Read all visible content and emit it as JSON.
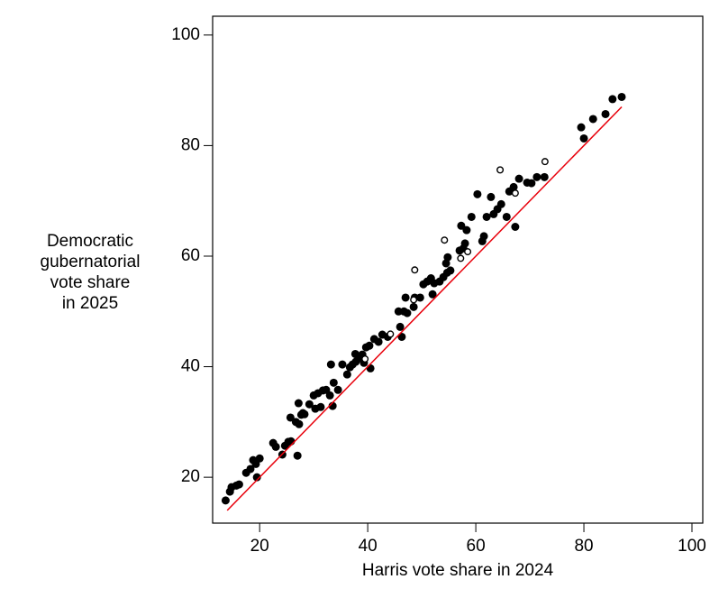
{
  "chart_data": {
    "type": "scatter",
    "xlabel": "Harris vote share in 2024",
    "ylabel": [
      "Democratic",
      "gubernatorial",
      "vote share",
      "in 2025"
    ],
    "xlim": [
      11.3,
      102
    ],
    "ylim": [
      11.7,
      103.4
    ],
    "xticks": [
      20,
      40,
      60,
      80,
      100
    ],
    "yticks": [
      20,
      40,
      60,
      80,
      100
    ],
    "series": [
      {
        "marker": "filled",
        "color": "#000000",
        "x": [
          13.7,
          14.5,
          14.8,
          15.7,
          16.2,
          17.5,
          18.3,
          18.8,
          19.3,
          20,
          19.5,
          22.5,
          23,
          24.2,
          24.7,
          25.3,
          25.8,
          25.7,
          26.7,
          27,
          27.2,
          27.3,
          27.7,
          28,
          28.3,
          29.2,
          30,
          30.3,
          30.8,
          31.3,
          31.7,
          32.3,
          33,
          33.2,
          33.5,
          33.7,
          34.5,
          35.3,
          36.2,
          36.7,
          37.2,
          37.7,
          37.8,
          38.3,
          39,
          39.3,
          39.7,
          40.3,
          40.5,
          41.2,
          42,
          42.7,
          43.7,
          45.7,
          46,
          46.3,
          46.7,
          47,
          47.3,
          48.5,
          48.7,
          49.7,
          50.3,
          51,
          51.7,
          52,
          52.3,
          53.3,
          54,
          54.5,
          54.7,
          54.8,
          55.3,
          57,
          57.3,
          57.7,
          58,
          58.3,
          59.2,
          60.3,
          61.2,
          61.5,
          62,
          62.8,
          63.3,
          64,
          64.7,
          65.7,
          66.2,
          67,
          67.3,
          68,
          69.5,
          70.3,
          71.3,
          72.7,
          79.5,
          80,
          81.7,
          84,
          85.3,
          87
        ],
        "values": [
          15.8,
          17.4,
          18.2,
          18.5,
          18.7,
          20.8,
          21.5,
          23.1,
          22.4,
          23.4,
          20,
          26.2,
          25.5,
          24.1,
          25.7,
          26.4,
          26.5,
          30.8,
          30,
          23.9,
          33.4,
          29.6,
          31.3,
          31.6,
          31.4,
          33.2,
          34.8,
          32.4,
          35.2,
          32.7,
          35.7,
          35.8,
          34.8,
          40.4,
          32.9,
          37.1,
          35.8,
          40.4,
          38.6,
          39.9,
          40.4,
          42.3,
          40.9,
          41.5,
          42.2,
          40.7,
          43.5,
          43.8,
          39.7,
          45,
          44.5,
          45.8,
          45.4,
          50,
          47.2,
          45.4,
          50,
          52.5,
          49.7,
          50.8,
          52.5,
          52.5,
          54.9,
          55.4,
          56,
          53.1,
          55.1,
          55.4,
          56.2,
          58.7,
          57,
          59.8,
          57.4,
          61,
          65.5,
          61.4,
          62.3,
          64.7,
          67.1,
          71.2,
          62.7,
          63.6,
          67.1,
          70.7,
          67.6,
          68.5,
          69.4,
          67.1,
          71.7,
          72.5,
          65.3,
          74,
          73.3,
          73.2,
          74.3,
          74.3,
          83.3,
          81.3,
          84.8,
          85.7,
          88.4,
          88.8
        ]
      },
      {
        "marker": "open",
        "color": "#000000",
        "x": [
          39.5,
          44.2,
          48.5,
          48.7,
          54.2,
          57.2,
          58.5,
          64.5,
          67.3,
          72.8
        ],
        "values": [
          41.4,
          45.9,
          52.1,
          57.5,
          62.9,
          59.6,
          60.8,
          75.6,
          71.4,
          77.1
        ]
      }
    ],
    "reference_line": {
      "color": "#e8000b",
      "x": [
        14,
        87
      ],
      "values": [
        14,
        87
      ]
    }
  }
}
